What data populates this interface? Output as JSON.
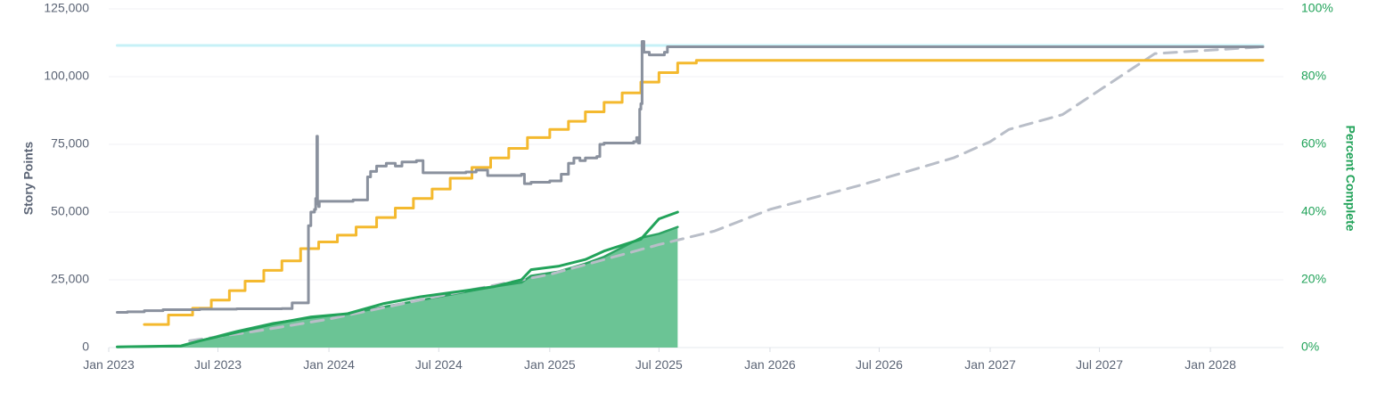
{
  "chart_data": {
    "type": "line",
    "title": "",
    "x_axis": {
      "type": "date",
      "ticks": [
        "Jan 2023",
        "Jul 2023",
        "Jan 2024",
        "Jul 2024",
        "Jan 2025",
        "Jul 2025",
        "Jan 2026",
        "Jul 2026",
        "Jan 2027",
        "Jul 2027",
        "Jan 2028"
      ],
      "range": [
        "2023-01-01",
        "2028-05-01"
      ]
    },
    "y_left": {
      "label": "Story Points",
      "ticks": [
        "0",
        "25,000",
        "50,000",
        "75,000",
        "100,000",
        "125,000"
      ],
      "range": [
        0,
        125000
      ],
      "color": "#5b6475"
    },
    "y_right": {
      "label": "Percent Complete",
      "ticks": [
        "0%",
        "20%",
        "40%",
        "60%",
        "80%",
        "100%"
      ],
      "range": [
        0,
        100
      ],
      "color": "#22a35a"
    },
    "grid": true,
    "legend": "none",
    "series": [
      {
        "key": "reference_line",
        "axis": "left",
        "style": "solid",
        "color": "#c7f1f7",
        "points": [
          [
            "2023-01-15",
            111500
          ],
          [
            "2028-03-28",
            111500
          ]
        ]
      },
      {
        "key": "total_scope",
        "axis": "left",
        "style": "step",
        "color": "#8a919e",
        "points": [
          [
            "2023-01-15",
            13000
          ],
          [
            "2023-02-01",
            13200
          ],
          [
            "2023-03-01",
            13600
          ],
          [
            "2023-04-01",
            14000
          ],
          [
            "2023-06-01",
            14200
          ],
          [
            "2023-08-01",
            14300
          ],
          [
            "2023-10-15",
            14400
          ],
          [
            "2023-11-01",
            16500
          ],
          [
            "2023-11-25",
            16500
          ],
          [
            "2023-11-28",
            45000
          ],
          [
            "2023-12-02",
            50000
          ],
          [
            "2023-12-08",
            51000
          ],
          [
            "2023-12-10",
            55000
          ],
          [
            "2023-12-12",
            78000
          ],
          [
            "2023-12-13",
            53000
          ],
          [
            "2023-12-15",
            52000
          ],
          [
            "2023-12-16",
            54000
          ],
          [
            "2024-02-10",
            54500
          ],
          [
            "2024-03-01",
            54500
          ],
          [
            "2024-03-05",
            63000
          ],
          [
            "2024-03-10",
            65000
          ],
          [
            "2024-03-20",
            67000
          ],
          [
            "2024-04-05",
            68000
          ],
          [
            "2024-04-20",
            67000
          ],
          [
            "2024-05-01",
            68500
          ],
          [
            "2024-05-25",
            69000
          ],
          [
            "2024-06-05",
            64500
          ],
          [
            "2024-08-15",
            64800
          ],
          [
            "2024-09-01",
            65500
          ],
          [
            "2024-09-20",
            63500
          ],
          [
            "2024-10-01",
            63500
          ],
          [
            "2024-11-15",
            64000
          ],
          [
            "2024-11-20",
            60500
          ],
          [
            "2024-12-01",
            61000
          ],
          [
            "2025-01-01",
            61500
          ],
          [
            "2025-01-20",
            64000
          ],
          [
            "2025-02-01",
            68000
          ],
          [
            "2025-02-10",
            70000
          ],
          [
            "2025-02-20",
            69000
          ],
          [
            "2025-03-01",
            70000
          ],
          [
            "2025-03-20",
            70500
          ],
          [
            "2025-03-25",
            75000
          ],
          [
            "2025-04-01",
            75500
          ],
          [
            "2025-05-20",
            76000
          ],
          [
            "2025-05-25",
            77500
          ],
          [
            "2025-05-28",
            75500
          ],
          [
            "2025-05-30",
            88000
          ],
          [
            "2025-06-01",
            90000
          ],
          [
            "2025-06-03",
            113000
          ],
          [
            "2025-06-06",
            109000
          ],
          [
            "2025-06-15",
            108000
          ],
          [
            "2025-07-10",
            109000
          ],
          [
            "2025-07-15",
            111000
          ],
          [
            "2028-03-28",
            111000
          ]
        ]
      },
      {
        "key": "committed",
        "axis": "left",
        "style": "step",
        "color": "#f4b92e",
        "points": [
          [
            "2023-03-01",
            8500
          ],
          [
            "2023-04-10",
            12000
          ],
          [
            "2023-05-20",
            14500
          ],
          [
            "2023-06-20",
            17500
          ],
          [
            "2023-07-20",
            21000
          ],
          [
            "2023-08-15",
            24500
          ],
          [
            "2023-09-15",
            28500
          ],
          [
            "2023-10-15",
            32000
          ],
          [
            "2023-11-15",
            36500
          ],
          [
            "2023-12-15",
            39000
          ],
          [
            "2024-01-15",
            41500
          ],
          [
            "2024-02-15",
            44500
          ],
          [
            "2024-03-20",
            48000
          ],
          [
            "2024-04-20",
            51500
          ],
          [
            "2024-05-20",
            55000
          ],
          [
            "2024-06-20",
            58500
          ],
          [
            "2024-07-20",
            62500
          ],
          [
            "2024-08-25",
            66500
          ],
          [
            "2024-09-25",
            70000
          ],
          [
            "2024-10-25",
            73500
          ],
          [
            "2024-11-25",
            77500
          ],
          [
            "2025-01-01",
            80500
          ],
          [
            "2025-02-01",
            83500
          ],
          [
            "2025-03-01",
            87000
          ],
          [
            "2025-04-01",
            90500
          ],
          [
            "2025-05-01",
            94000
          ],
          [
            "2025-06-01",
            98000
          ],
          [
            "2025-07-01",
            101500
          ],
          [
            "2025-08-01",
            105000
          ],
          [
            "2025-09-01",
            106000
          ],
          [
            "2028-03-28",
            106000
          ]
        ]
      },
      {
        "key": "projected",
        "axis": "left",
        "style": "dashed",
        "color": "#b9bec8",
        "points": [
          [
            "2023-05-15",
            2500
          ],
          [
            "2023-06-15",
            3500
          ],
          [
            "2023-09-01",
            6000
          ],
          [
            "2024-01-01",
            10500
          ],
          [
            "2024-07-01",
            19000
          ],
          [
            "2025-01-01",
            27000
          ],
          [
            "2025-07-01",
            38000
          ],
          [
            "2025-10-01",
            43000
          ],
          [
            "2026-01-01",
            51000
          ],
          [
            "2026-06-01",
            60000
          ],
          [
            "2026-11-01",
            70000
          ],
          [
            "2027-01-01",
            76000
          ],
          [
            "2027-02-01",
            80500
          ],
          [
            "2027-05-01",
            86000
          ],
          [
            "2027-10-01",
            108500
          ],
          [
            "2028-03-28",
            111000
          ]
        ]
      },
      {
        "key": "percent_complete",
        "axis": "right",
        "style": "solid",
        "color": "#22a35a",
        "points": [
          [
            "2023-01-15",
            0.2
          ],
          [
            "2023-05-01",
            0.5
          ],
          [
            "2023-06-01",
            2
          ],
          [
            "2023-08-01",
            4.5
          ],
          [
            "2023-10-01",
            7
          ],
          [
            "2023-12-01",
            9
          ],
          [
            "2024-02-01",
            10
          ],
          [
            "2024-04-01",
            13
          ],
          [
            "2024-06-01",
            15
          ],
          [
            "2024-08-01",
            16.5
          ],
          [
            "2024-10-01",
            18
          ],
          [
            "2024-11-15",
            20
          ],
          [
            "2024-12-01",
            23
          ],
          [
            "2025-01-15",
            24
          ],
          [
            "2025-03-01",
            26
          ],
          [
            "2025-04-01",
            28.5
          ],
          [
            "2025-06-01",
            32
          ],
          [
            "2025-07-01",
            38
          ],
          [
            "2025-08-01",
            40
          ]
        ]
      },
      {
        "key": "completed",
        "axis": "left",
        "style": "area",
        "color": "#2ea464",
        "fill": "#6bc495",
        "points": [
          [
            "2023-01-15",
            200
          ],
          [
            "2023-05-01",
            500
          ],
          [
            "2023-06-01",
            2500
          ],
          [
            "2023-08-01",
            6000
          ],
          [
            "2023-10-01",
            9000
          ],
          [
            "2023-12-01",
            11000
          ],
          [
            "2024-02-01",
            12500
          ],
          [
            "2024-04-01",
            15000
          ],
          [
            "2024-06-01",
            17500
          ],
          [
            "2024-08-01",
            20000
          ],
          [
            "2024-10-01",
            22500
          ],
          [
            "2024-11-15",
            24000
          ],
          [
            "2024-12-01",
            26500
          ],
          [
            "2025-01-15",
            28000
          ],
          [
            "2025-03-01",
            31000
          ],
          [
            "2025-04-01",
            33500
          ],
          [
            "2025-06-01",
            40500
          ],
          [
            "2025-07-01",
            42000
          ],
          [
            "2025-08-01",
            44500
          ]
        ]
      }
    ]
  }
}
